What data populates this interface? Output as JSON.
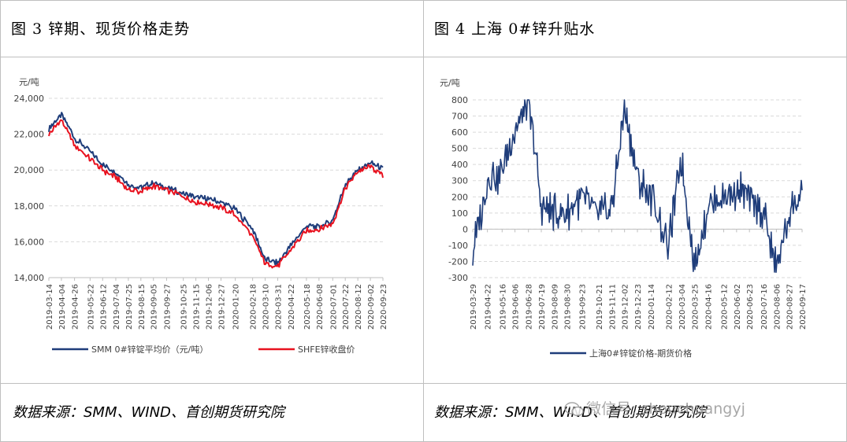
{
  "left_panel": {
    "title": "图 3 锌期、现货价格走势",
    "source": "数据来源：SMM、WIND、首创期货研究院"
  },
  "right_panel": {
    "title": "图 4 上海 0#锌升贴水",
    "source": "数据来源：SMM、WIND、首创期货研究院"
  },
  "watermark": {
    "text": "微信号: shouchuangyj",
    "icon": "wechat-icon"
  },
  "chart_data": [
    {
      "type": "line",
      "ylabel": "元/吨",
      "ylim": [
        14000,
        24000
      ],
      "yticks": [
        "14,000",
        "16,000",
        "18,000",
        "20,000",
        "22,000",
        "24,000"
      ],
      "grid": true,
      "legend_position": "bottom",
      "x_ticks": [
        "2019-03-14",
        "2019-04-04",
        "2019-04-26",
        "2019-05-22",
        "2019-06-12",
        "2019-07-04",
        "2019-07-25",
        "2019-08-15",
        "2019-09-05",
        "2019-09-27",
        "2019-10-25",
        "2019-11-15",
        "2019-12-06",
        "2019-12-27",
        "2020-01-20",
        "2020-02-18",
        "2020-03-10",
        "2020-03-31",
        "2020-04-22",
        "2020-05-18",
        "2020-06-08",
        "2020-07-01",
        "2020-07-22",
        "2020-08-12",
        "2020-09-02",
        "2020-09-23"
      ],
      "x": [
        "2019-03-14",
        "2019-04-04",
        "2019-04-26",
        "2019-05-22",
        "2019-06-12",
        "2019-07-04",
        "2019-07-25",
        "2019-08-15",
        "2019-09-05",
        "2019-09-27",
        "2019-10-25",
        "2019-11-15",
        "2019-12-06",
        "2019-12-27",
        "2020-01-20",
        "2020-02-18",
        "2020-03-10",
        "2020-03-31",
        "2020-04-22",
        "2020-05-18",
        "2020-06-08",
        "2020-07-01",
        "2020-07-22",
        "2020-08-12",
        "2020-09-02",
        "2020-09-23"
      ],
      "series": [
        {
          "name": "SMM 0#锌锭平均价（元/吨）",
          "color": "#1f3d7a",
          "values": [
            22300,
            23100,
            21800,
            21000,
            20300,
            19900,
            19200,
            19000,
            19300,
            19000,
            18700,
            18500,
            18400,
            18200,
            17800,
            16700,
            15000,
            14800,
            15800,
            16900,
            16800,
            17200,
            19200,
            20000,
            20400,
            20100
          ]
        },
        {
          "name": "SHFE锌收盘价",
          "color": "#e8121f",
          "values": [
            22000,
            22800,
            21400,
            20600,
            20000,
            19600,
            18900,
            18800,
            19100,
            18900,
            18500,
            18200,
            18100,
            17900,
            17500,
            16300,
            14800,
            14600,
            15600,
            16600,
            16700,
            17000,
            19000,
            19900,
            20200,
            19700
          ]
        }
      ]
    },
    {
      "type": "line",
      "ylabel": "元/吨",
      "ylim": [
        -300,
        800
      ],
      "yticks": [
        "-300",
        "-200",
        "-100",
        "0",
        "100",
        "200",
        "300",
        "400",
        "500",
        "600",
        "700",
        "800"
      ],
      "grid": true,
      "legend_position": "bottom",
      "x_ticks": [
        "2019-03-29",
        "2019-04-22",
        "2019-05-16",
        "2019-06-06",
        "2019-06-28",
        "2019-07-19",
        "2019-08-09",
        "2019-08-30",
        "2019-09-23",
        "2019-10-21",
        "2019-11-11",
        "2019-12-02",
        "2019-12-23",
        "2020-01-14",
        "2020-02-12",
        "2020-03-04",
        "2020-03-25",
        "2020-04-16",
        "2020-05-12",
        "2020-06-02",
        "2020-06-23",
        "2020-07-16",
        "2020-08-06",
        "2020-08-27",
        "2020-09-17"
      ],
      "x": [
        "2019-03-29",
        "2019-04-22",
        "2019-05-16",
        "2019-06-06",
        "2019-06-28",
        "2019-07-19",
        "2019-08-09",
        "2019-08-30",
        "2019-09-23",
        "2019-10-21",
        "2019-11-11",
        "2019-12-02",
        "2019-12-23",
        "2020-01-14",
        "2020-02-12",
        "2020-03-04",
        "2020-03-25",
        "2020-04-16",
        "2020-05-12",
        "2020-06-02",
        "2020-06-23",
        "2020-07-16",
        "2020-08-06",
        "2020-08-27",
        "2020-09-17"
      ],
      "series": [
        {
          "name": "上海0#锌锭价格-期货价格",
          "color": "#1f3d7a",
          "values": [
            -150,
            300,
            350,
            600,
            800,
            150,
            100,
            100,
            200,
            100,
            130,
            750,
            300,
            200,
            -100,
            450,
            -250,
            150,
            200,
            250,
            200,
            100,
            -250,
            100,
            200
          ]
        }
      ]
    }
  ]
}
